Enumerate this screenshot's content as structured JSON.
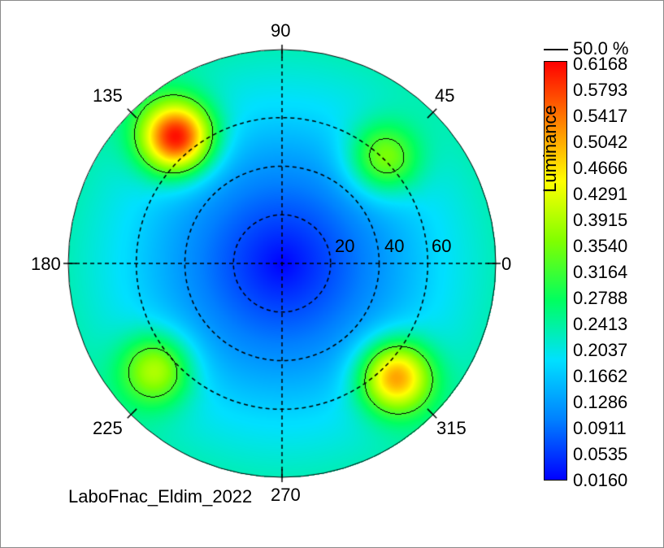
{
  "chart_data": {
    "type": "heatmap",
    "projection": "polar",
    "quantity": "Luminance",
    "footer_label": "LaboFnac_Eldim_2022",
    "azimuth_labels": [
      "0",
      "45",
      "90",
      "135",
      "180",
      "225",
      "270",
      "315"
    ],
    "azimuth_values": [
      0,
      45,
      90,
      135,
      180,
      225,
      270,
      315
    ],
    "radial_labels": [
      "20",
      "40",
      "60"
    ],
    "radial_values": [
      20,
      40,
      60
    ],
    "radial_max": 88,
    "contour_label": "50.0 %",
    "colorbar_ticks": [
      "0.6168",
      "0.5793",
      "0.5417",
      "0.5042",
      "0.4666",
      "0.4291",
      "0.3915",
      "0.3540",
      "0.3164",
      "0.2788",
      "0.2413",
      "0.2037",
      "0.1662",
      "0.1286",
      "0.0911",
      "0.0535",
      "0.0160"
    ],
    "range": [
      0.016,
      0.6168
    ],
    "colormap": [
      "#0000ff",
      "#0080ff",
      "#00e0ff",
      "#00ff60",
      "#80ff00",
      "#ffff00",
      "#ff8000",
      "#ff0000"
    ],
    "hotspots": [
      {
        "azimuth": 130,
        "theta": 68,
        "value": 0.6168
      },
      {
        "azimuth": 315,
        "theta": 66,
        "value": 0.52
      },
      {
        "azimuth": 220,
        "theta": 68,
        "value": 0.4
      },
      {
        "azimuth": 46,
        "theta": 60,
        "value": 0.38
      }
    ],
    "center_value": 0.016,
    "grid": true
  }
}
